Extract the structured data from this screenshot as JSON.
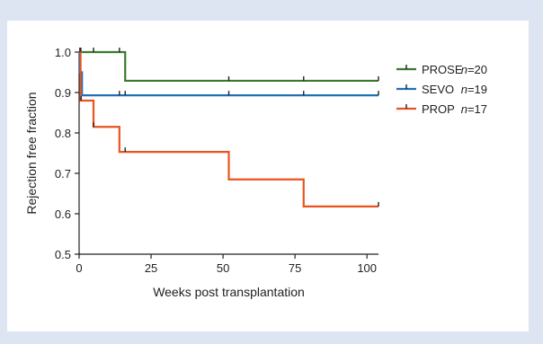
{
  "chart_data": {
    "type": "line",
    "subtype": "kaplan-meier step",
    "title": "",
    "xlabel": "Weeks post transplantation",
    "ylabel": "Rejection free fraction",
    "xlim": [
      0,
      104
    ],
    "ylim": [
      0.5,
      1.0
    ],
    "xticks": [
      0,
      25,
      50,
      75,
      100
    ],
    "yticks": [
      0.5,
      0.6,
      0.7,
      0.8,
      0.9,
      1.0
    ],
    "xtick_labels": [
      "0",
      "25",
      "50",
      "75",
      "100"
    ],
    "ytick_labels": [
      "0.5",
      "0.6",
      "0.7",
      "0.8",
      "0.9",
      "1.0"
    ],
    "grid": false,
    "legend_position": "top-right",
    "series": [
      {
        "name": "PROSE",
        "n_label": "n",
        "n_value": "=20",
        "color": "#3a7a2e",
        "steps": [
          [
            0,
            1.0
          ],
          [
            16,
            0.929
          ],
          [
            104,
            0.929
          ]
        ],
        "censor": [
          0.3,
          0.6,
          5,
          14,
          52,
          78,
          104
        ]
      },
      {
        "name": "SEVO",
        "n_label": "n",
        "n_value": "=19",
        "color": "#1f6fb8",
        "steps": [
          [
            0,
            1.0
          ],
          [
            0.3,
            0.95
          ],
          [
            1,
            0.893
          ],
          [
            104,
            0.893
          ]
        ],
        "censor": [
          0.5,
          14,
          16,
          52,
          78,
          104
        ]
      },
      {
        "name": "PROP",
        "n_label": "n",
        "n_value": "=17",
        "color": "#e8541e",
        "steps": [
          [
            0,
            1.0
          ],
          [
            0.5,
            0.88
          ],
          [
            5,
            0.815
          ],
          [
            14,
            0.753
          ],
          [
            52,
            0.685
          ],
          [
            78,
            0.618
          ],
          [
            104,
            0.618
          ]
        ],
        "censor": [
          0.3,
          0.7,
          5,
          16,
          104
        ]
      }
    ]
  }
}
